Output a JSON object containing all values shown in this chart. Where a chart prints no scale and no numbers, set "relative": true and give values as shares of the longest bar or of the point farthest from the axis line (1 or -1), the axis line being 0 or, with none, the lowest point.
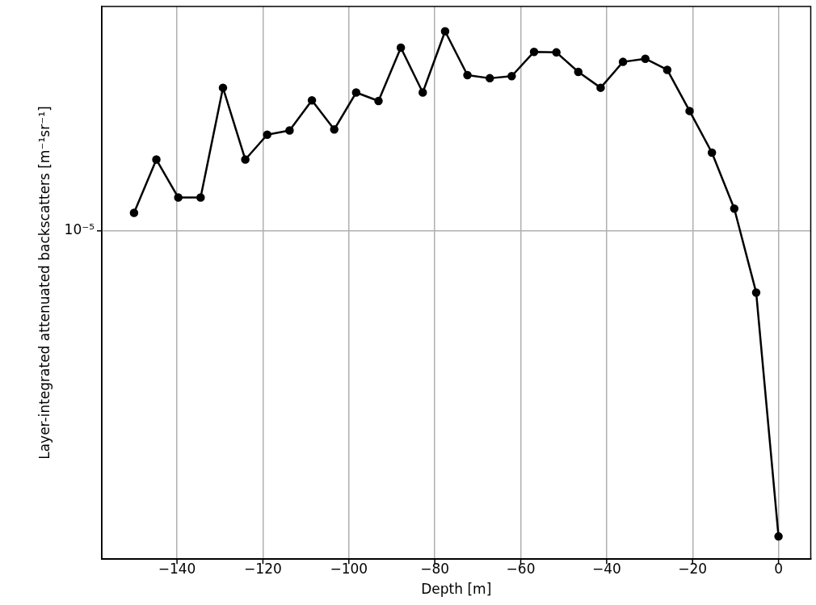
{
  "chart_data": {
    "type": "line",
    "xlabel": "Depth [m]",
    "ylabel": "Layer-integrated attenuated backscatters [m⁻¹sr⁻¹]",
    "x": [
      -150,
      -144.8,
      -139.7,
      -134.5,
      -129.3,
      -124.1,
      -119.0,
      -113.8,
      -108.6,
      -103.4,
      -98.3,
      -93.1,
      -87.9,
      -82.8,
      -77.6,
      -72.4,
      -67.2,
      -62.1,
      -56.9,
      -51.7,
      -46.6,
      -41.4,
      -36.2,
      -31.0,
      -25.9,
      -20.7,
      -15.5,
      -10.3,
      -5.2,
      0
    ],
    "values": [
      0.656,
      0.757,
      0.685,
      0.685,
      0.893,
      0.757,
      0.804,
      0.812,
      0.869,
      0.814,
      0.884,
      0.868,
      0.969,
      0.884,
      1,
      0.917,
      0.911,
      0.915,
      0.961,
      0.96,
      0.923,
      0.893,
      0.942,
      0.948,
      0.927,
      0.849,
      0.77,
      0.664,
      0.505,
      0.043
    ],
    "relative": true,
    "color": "#000000",
    "marker": "circle",
    "line_style": "solid",
    "grid": true,
    "xlim": [
      -157.5,
      7.5
    ],
    "xticks": [
      -140,
      -120,
      -100,
      -80,
      -60,
      -40,
      -20,
      0
    ],
    "annotations": [
      "10⁻⁵"
    ]
  }
}
